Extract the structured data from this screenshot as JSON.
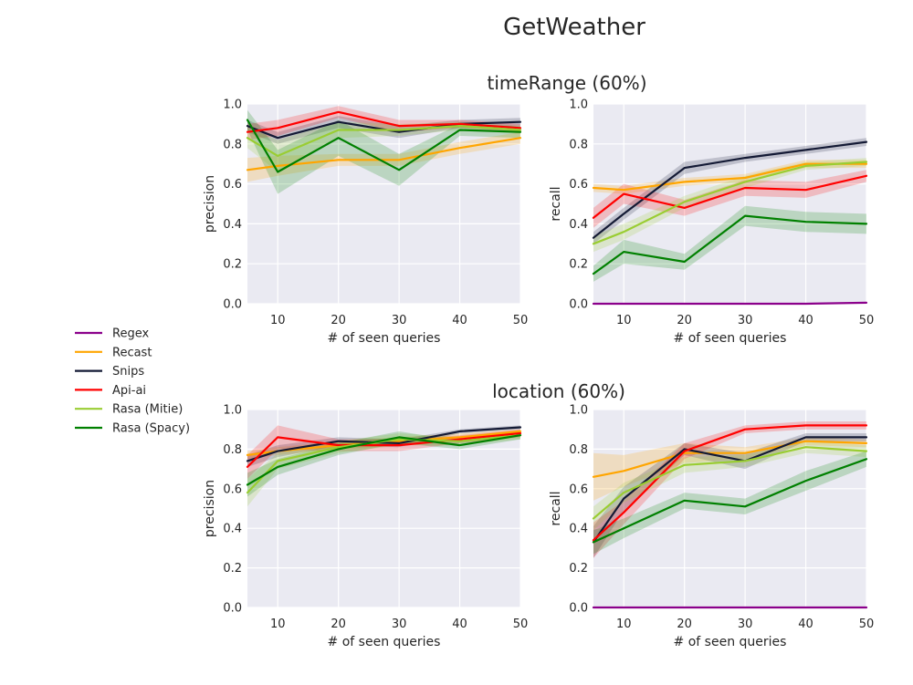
{
  "title": "GetWeather",
  "chart_data": [
    {
      "type": "line",
      "group_title": "timeRange (60%)",
      "xlabel": "# of seen queries",
      "ylabel": "precision",
      "xlim": [
        5,
        50
      ],
      "ylim": [
        0,
        1
      ],
      "x": [
        5,
        10,
        20,
        30,
        40,
        50
      ],
      "series": [
        {
          "name": "Recast",
          "values": [
            0.67,
            0.69,
            0.72,
            0.72,
            0.78,
            0.83
          ],
          "band": [
            0.06,
            0.05,
            0.03,
            0.03,
            0.03,
            0.03
          ]
        },
        {
          "name": "Snips",
          "values": [
            0.89,
            0.83,
            0.91,
            0.86,
            0.9,
            0.91
          ],
          "band": [
            0.03,
            0.03,
            0.03,
            0.03,
            0.02,
            0.02
          ]
        },
        {
          "name": "Api-ai",
          "values": [
            0.86,
            0.88,
            0.96,
            0.89,
            0.9,
            0.88
          ],
          "band": [
            0.04,
            0.04,
            0.03,
            0.03,
            0.02,
            0.02
          ]
        },
        {
          "name": "Rasa (Mitie)",
          "values": [
            0.83,
            0.74,
            0.87,
            0.87,
            0.89,
            0.87
          ],
          "band": [
            0.05,
            0.08,
            0.04,
            0.03,
            0.02,
            0.02
          ]
        },
        {
          "name": "Rasa (Spacy)",
          "values": [
            0.92,
            0.66,
            0.83,
            0.67,
            0.87,
            0.86
          ],
          "band": [
            0.05,
            0.11,
            0.09,
            0.08,
            0.03,
            0.03
          ]
        }
      ]
    },
    {
      "type": "line",
      "group_title": "timeRange (60%)",
      "xlabel": "# of seen queries",
      "ylabel": "recall",
      "xlim": [
        5,
        50
      ],
      "ylim": [
        0,
        1
      ],
      "x": [
        5,
        10,
        20,
        30,
        40,
        50
      ],
      "series": [
        {
          "name": "Regex",
          "values": [
            0.0,
            0.0,
            0.0,
            0.0,
            0.0,
            0.005
          ],
          "band": [
            0,
            0,
            0,
            0,
            0,
            0
          ]
        },
        {
          "name": "Recast",
          "values": [
            0.58,
            0.57,
            0.61,
            0.63,
            0.7,
            0.7
          ],
          "band": [
            0.02,
            0.02,
            0.02,
            0.02,
            0.02,
            0.02
          ]
        },
        {
          "name": "Snips",
          "values": [
            0.33,
            0.45,
            0.68,
            0.73,
            0.77,
            0.81
          ],
          "band": [
            0.03,
            0.03,
            0.03,
            0.02,
            0.02,
            0.02
          ]
        },
        {
          "name": "Api-ai",
          "values": [
            0.43,
            0.55,
            0.48,
            0.58,
            0.57,
            0.64
          ],
          "band": [
            0.05,
            0.05,
            0.04,
            0.04,
            0.04,
            0.03
          ]
        },
        {
          "name": "Rasa (Mitie)",
          "values": [
            0.3,
            0.36,
            0.51,
            0.61,
            0.69,
            0.71
          ],
          "band": [
            0.04,
            0.04,
            0.03,
            0.03,
            0.02,
            0.02
          ]
        },
        {
          "name": "Rasa (Spacy)",
          "values": [
            0.15,
            0.26,
            0.21,
            0.44,
            0.41,
            0.4
          ],
          "band": [
            0.04,
            0.06,
            0.04,
            0.05,
            0.05,
            0.05
          ]
        }
      ]
    },
    {
      "type": "line",
      "group_title": "location (60%)",
      "xlabel": "# of seen queries",
      "ylabel": "precision",
      "xlim": [
        5,
        50
      ],
      "ylim": [
        0,
        1
      ],
      "x": [
        5,
        10,
        20,
        30,
        40,
        50
      ],
      "series": [
        {
          "name": "Recast",
          "values": [
            0.77,
            0.79,
            0.82,
            0.84,
            0.86,
            0.89
          ],
          "band": [
            0.02,
            0.02,
            0.02,
            0.02,
            0.02,
            0.01
          ]
        },
        {
          "name": "Snips",
          "values": [
            0.74,
            0.79,
            0.84,
            0.83,
            0.89,
            0.91
          ],
          "band": [
            0.03,
            0.03,
            0.02,
            0.02,
            0.01,
            0.01
          ]
        },
        {
          "name": "Api-ai",
          "values": [
            0.71,
            0.86,
            0.82,
            0.82,
            0.85,
            0.88
          ],
          "band": [
            0.06,
            0.06,
            0.03,
            0.03,
            0.02,
            0.02
          ]
        },
        {
          "name": "Rasa (Mitie)",
          "values": [
            0.58,
            0.74,
            0.81,
            0.85,
            0.84,
            0.87
          ],
          "band": [
            0.07,
            0.04,
            0.03,
            0.03,
            0.02,
            0.02
          ]
        },
        {
          "name": "Rasa (Spacy)",
          "values": [
            0.62,
            0.71,
            0.8,
            0.86,
            0.82,
            0.87
          ],
          "band": [
            0.06,
            0.04,
            0.03,
            0.03,
            0.02,
            0.02
          ]
        }
      ]
    },
    {
      "type": "line",
      "group_title": "location (60%)",
      "xlabel": "# of seen queries",
      "ylabel": "recall",
      "xlim": [
        5,
        50
      ],
      "ylim": [
        0,
        1
      ],
      "x": [
        5,
        10,
        20,
        30,
        40,
        50
      ],
      "series": [
        {
          "name": "Regex",
          "values": [
            0.0,
            0.0,
            0.0,
            0.0,
            0.0,
            0.0
          ],
          "band": [
            0,
            0,
            0,
            0,
            0,
            0
          ]
        },
        {
          "name": "Recast",
          "values": [
            0.66,
            0.69,
            0.78,
            0.78,
            0.84,
            0.83
          ],
          "band": [
            0.12,
            0.08,
            0.05,
            0.03,
            0.02,
            0.02
          ]
        },
        {
          "name": "Snips",
          "values": [
            0.33,
            0.55,
            0.8,
            0.74,
            0.86,
            0.86
          ],
          "band": [
            0.08,
            0.06,
            0.03,
            0.04,
            0.02,
            0.02
          ]
        },
        {
          "name": "Api-ai",
          "values": [
            0.34,
            0.48,
            0.79,
            0.9,
            0.92,
            0.92
          ],
          "band": [
            0.09,
            0.06,
            0.04,
            0.02,
            0.02,
            0.02
          ]
        },
        {
          "name": "Rasa (Mitie)",
          "values": [
            0.45,
            0.58,
            0.72,
            0.74,
            0.81,
            0.79
          ],
          "band": [
            0.06,
            0.05,
            0.04,
            0.03,
            0.03,
            0.03
          ]
        },
        {
          "name": "Rasa (Spacy)",
          "values": [
            0.33,
            0.4,
            0.54,
            0.51,
            0.64,
            0.75
          ],
          "band": [
            0.06,
            0.05,
            0.04,
            0.04,
            0.05,
            0.04
          ]
        }
      ]
    }
  ],
  "legend": {
    "placement": "left",
    "entries": [
      {
        "name": "Regex",
        "color": "#8b008b"
      },
      {
        "name": "Recast",
        "color": "#ffa500"
      },
      {
        "name": "Snips",
        "color": "#141a35"
      },
      {
        "name": "Api-ai",
        "color": "#ff0000"
      },
      {
        "name": "Rasa (Mitie)",
        "color": "#9acd32"
      },
      {
        "name": "Rasa (Spacy)",
        "color": "#008000"
      }
    ]
  },
  "style": {
    "panel_bg": "#eaeaf2",
    "grid": "#ffffff",
    "grid_on": true
  }
}
